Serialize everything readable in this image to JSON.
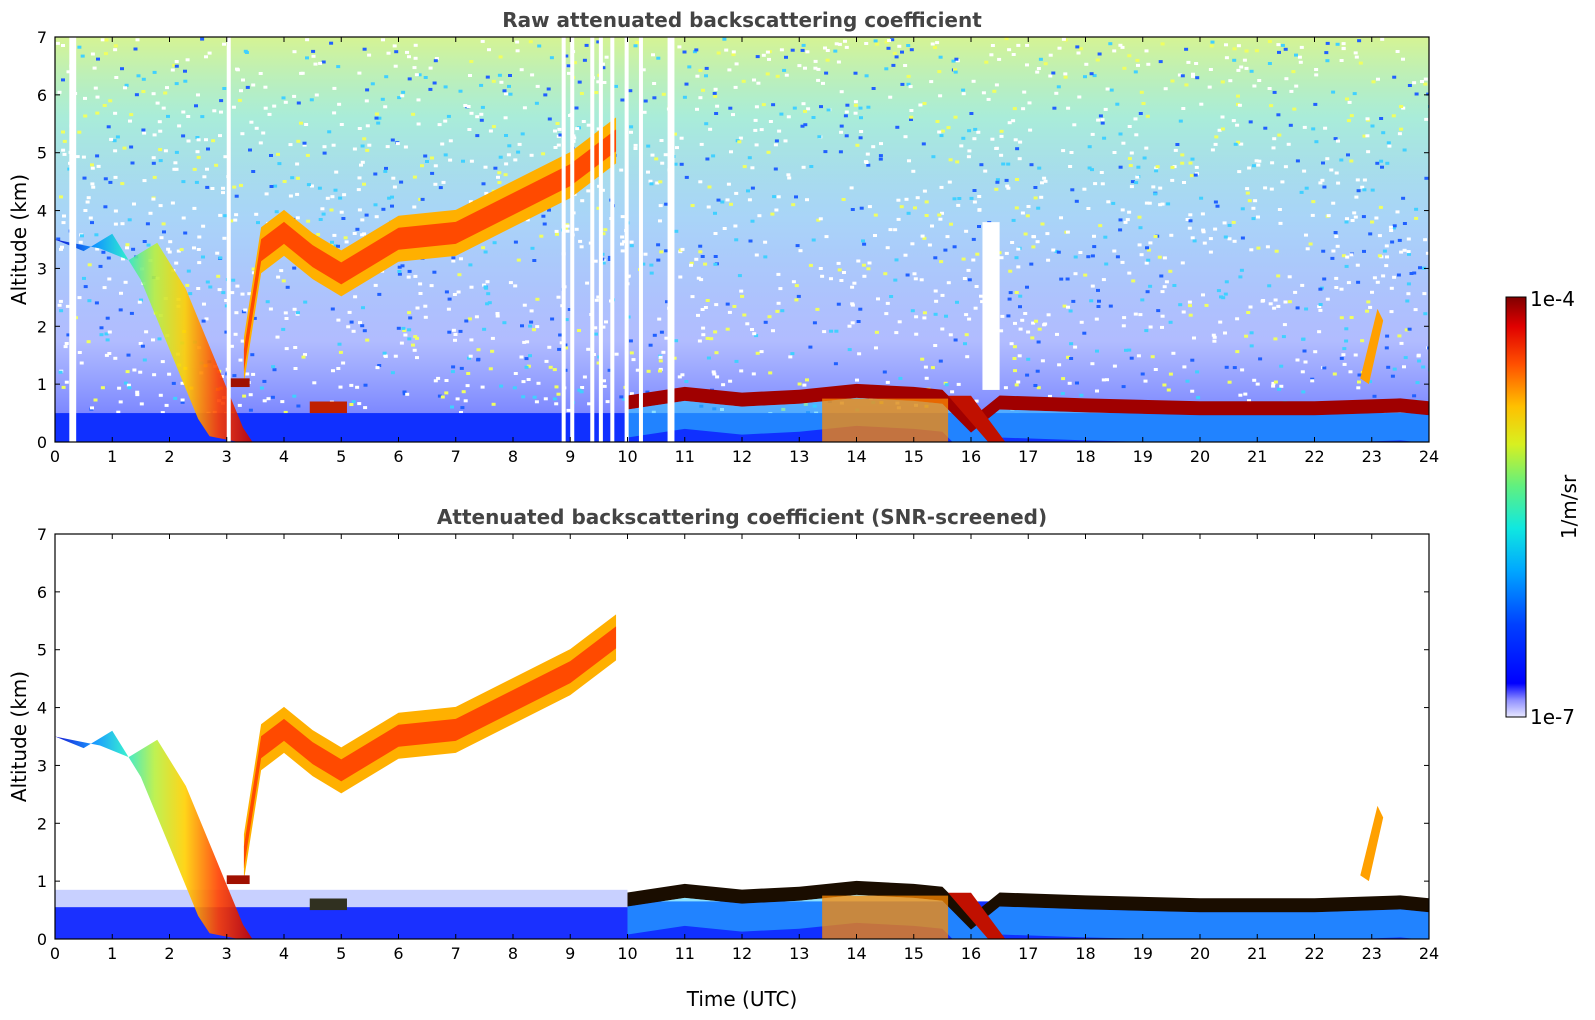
{
  "colors": {
    "jet_low": "#00008f",
    "jet_high": "#7f0000",
    "screened_core": "#1a0d00",
    "background": "#ffffff"
  },
  "colorbar": {
    "label": "1/m/sr",
    "max_label": "1e-4",
    "min_label": "1e-7",
    "scale": "log",
    "range": [
      1e-07,
      0.0001
    ]
  },
  "chart_data": [
    {
      "type": "heatmap",
      "name": "raw",
      "title": "Raw attenuated backscattering coefficient",
      "xlabel": "",
      "ylabel": "Altitude (km)",
      "xlim": [
        0,
        24
      ],
      "ylim": [
        0,
        7
      ],
      "xticks": [
        "0",
        "1",
        "2",
        "3",
        "4",
        "5",
        "6",
        "7",
        "8",
        "9",
        "10",
        "11",
        "12",
        "13",
        "14",
        "15",
        "16",
        "17",
        "18",
        "19",
        "20",
        "21",
        "22",
        "23",
        "24"
      ],
      "yticks": [
        "0",
        "1",
        "2",
        "3",
        "4",
        "5",
        "6",
        "7"
      ],
      "features": {
        "cirrus_layer": [
          [
            0.0,
            3.5
          ],
          [
            0.5,
            3.3
          ],
          [
            1.0,
            3.6
          ],
          [
            1.5,
            2.8
          ],
          [
            2.0,
            1.6
          ],
          [
            2.5,
            0.4
          ],
          [
            2.7,
            0.1
          ]
        ],
        "ascending_layer": [
          [
            3.3,
            1.5
          ],
          [
            3.6,
            3.4
          ],
          [
            4.0,
            3.7
          ],
          [
            4.5,
            3.3
          ],
          [
            5.0,
            3.0
          ],
          [
            6.0,
            3.6
          ],
          [
            7.0,
            3.7
          ],
          [
            8.0,
            4.2
          ],
          [
            9.0,
            4.7
          ],
          [
            9.8,
            5.3
          ]
        ],
        "boundary_layer_top_km": [
          [
            10.0,
            0.7
          ],
          [
            11.0,
            0.85
          ],
          [
            12.0,
            0.75
          ],
          [
            13.0,
            0.8
          ],
          [
            14.0,
            0.9
          ],
          [
            15.0,
            0.85
          ],
          [
            15.5,
            0.8
          ],
          [
            16.0,
            0.3
          ],
          [
            16.5,
            0.7
          ],
          [
            18.0,
            0.65
          ],
          [
            20.0,
            0.6
          ],
          [
            22.0,
            0.6
          ],
          [
            23.5,
            0.65
          ],
          [
            24.0,
            0.6
          ]
        ],
        "low_cloud_blue_top_km": 0.5
      }
    },
    {
      "type": "heatmap",
      "name": "screened",
      "title": "Attenuated backscattering coefficient (SNR-screened)",
      "xlabel": "Time (UTC)",
      "ylabel": "Altitude (km)",
      "xlim": [
        0,
        24
      ],
      "ylim": [
        0,
        7
      ],
      "xticks": [
        "0",
        "1",
        "2",
        "3",
        "4",
        "5",
        "6",
        "7",
        "8",
        "9",
        "10",
        "11",
        "12",
        "13",
        "14",
        "15",
        "16",
        "17",
        "18",
        "19",
        "20",
        "21",
        "22",
        "23",
        "24"
      ],
      "yticks": [
        "0",
        "1",
        "2",
        "3",
        "4",
        "5",
        "6",
        "7"
      ]
    }
  ]
}
